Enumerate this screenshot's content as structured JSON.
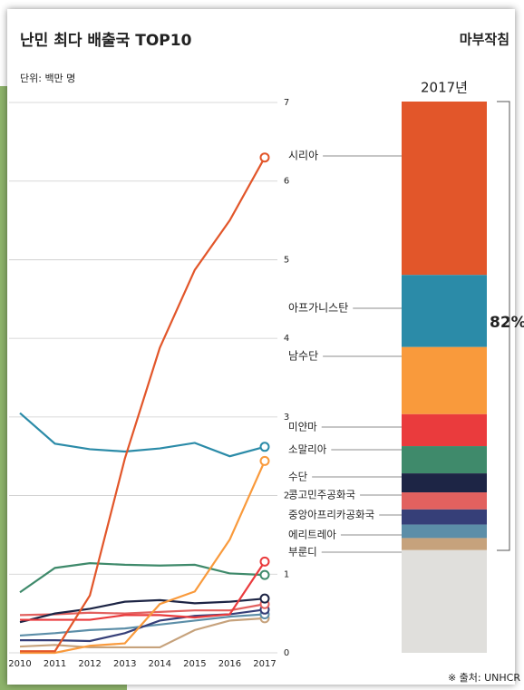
{
  "chart_data": {
    "type": "line",
    "title": "난민 최다 배출국 TOP10",
    "logo": "마부작침",
    "subtitle": "단위: 백만 명",
    "source": "※ 출처: UNHCR",
    "categories": [
      "2010",
      "2011",
      "2012",
      "2013",
      "2014",
      "2015",
      "2016",
      "2017"
    ],
    "ylim": [
      0,
      7
    ],
    "yticks": [
      0,
      1,
      2,
      3,
      4,
      5,
      6,
      7
    ],
    "grid": true,
    "series": [
      {
        "name": "시리아",
        "color": "#e2562a",
        "values": [
          0.02,
          0.02,
          0.73,
          2.47,
          3.88,
          4.87,
          5.5,
          6.3
        ]
      },
      {
        "name": "아프가니스탄",
        "color": "#2b8ba8",
        "values": [
          3.05,
          2.66,
          2.59,
          2.56,
          2.6,
          2.67,
          2.5,
          2.62
        ]
      },
      {
        "name": "남수단",
        "color": "#f99a3c",
        "values": [
          0,
          0,
          0.09,
          0.12,
          0.62,
          0.78,
          1.44,
          2.44
        ]
      },
      {
        "name": "미얀마",
        "color": "#ea3b3d",
        "values": [
          0.42,
          0.42,
          0.42,
          0.48,
          0.48,
          0.45,
          0.49,
          1.16
        ]
      },
      {
        "name": "소말리아",
        "color": "#3f8a6b",
        "values": [
          0.77,
          1.08,
          1.14,
          1.12,
          1.11,
          1.12,
          1.01,
          0.99
        ]
      },
      {
        "name": "수단",
        "color": "#1d2545",
        "values": [
          0.39,
          0.5,
          0.56,
          0.65,
          0.67,
          0.63,
          0.65,
          0.69
        ]
      },
      {
        "name": "콩고민주공화국",
        "color": "#e2615f",
        "values": [
          0.48,
          0.49,
          0.51,
          0.5,
          0.52,
          0.54,
          0.54,
          0.62
        ]
      },
      {
        "name": "중앙아프리카공화국",
        "color": "#363f78",
        "values": [
          0.16,
          0.16,
          0.15,
          0.25,
          0.41,
          0.47,
          0.49,
          0.55
        ]
      },
      {
        "name": "에리트레아",
        "color": "#5c8ea8",
        "values": [
          0.22,
          0.25,
          0.29,
          0.31,
          0.36,
          0.41,
          0.46,
          0.49
        ]
      },
      {
        "name": "부룬디",
        "color": "#c6a27c",
        "values": [
          0.08,
          0.1,
          0.07,
          0.07,
          0.07,
          0.29,
          0.41,
          0.44
        ]
      }
    ],
    "bar": {
      "title": "2017년",
      "other": 3.73,
      "other_color": "#e0dfdc",
      "share_label": "82%"
    }
  }
}
